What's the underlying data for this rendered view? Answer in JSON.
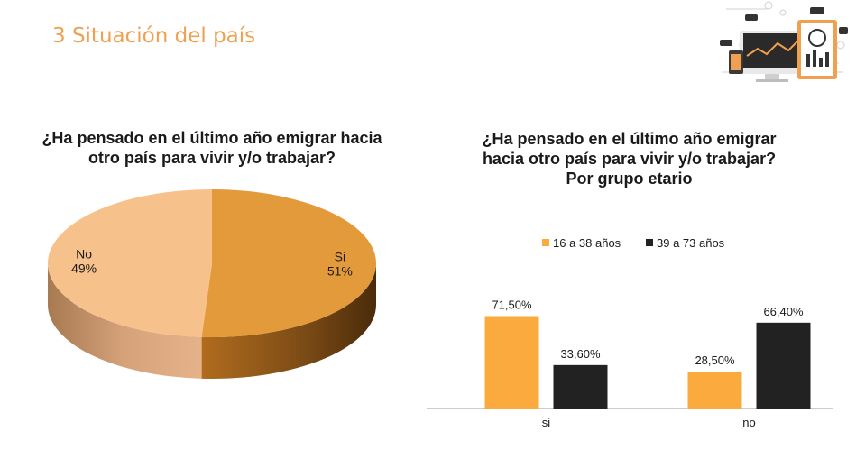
{
  "header": {
    "title": "3 Situación del país"
  },
  "colors": {
    "accent": "#f0a050",
    "orange": "#fbab3e",
    "dark": "#222222",
    "pie_si": "#e39a3b",
    "pie_no": "#f7c18b"
  },
  "chart_data": [
    {
      "type": "pie",
      "title": "¿Ha pensado en el último año emigrar hacia otro país para vivir y/o trabajar?",
      "slices": [
        {
          "label": "Si",
          "value": 51,
          "display": "51%"
        },
        {
          "label": "No",
          "value": 49,
          "display": "49%"
        }
      ]
    },
    {
      "type": "bar",
      "title_lines": [
        "¿Ha pensado en el último año emigrar",
        "hacia otro país para vivir y/o trabajar?",
        "Por grupo etario"
      ],
      "categories": [
        "si",
        "no"
      ],
      "series": [
        {
          "name": "16 a 38 años",
          "values": [
            71.5,
            28.5
          ],
          "labels": [
            "71,50%",
            "28,50%"
          ]
        },
        {
          "name": "39 a  73 años",
          "values": [
            33.6,
            66.4
          ],
          "labels": [
            "33,60%",
            "66,40%"
          ]
        }
      ],
      "ylim": [
        0,
        100
      ],
      "legend_position": "top",
      "grid": false
    }
  ]
}
